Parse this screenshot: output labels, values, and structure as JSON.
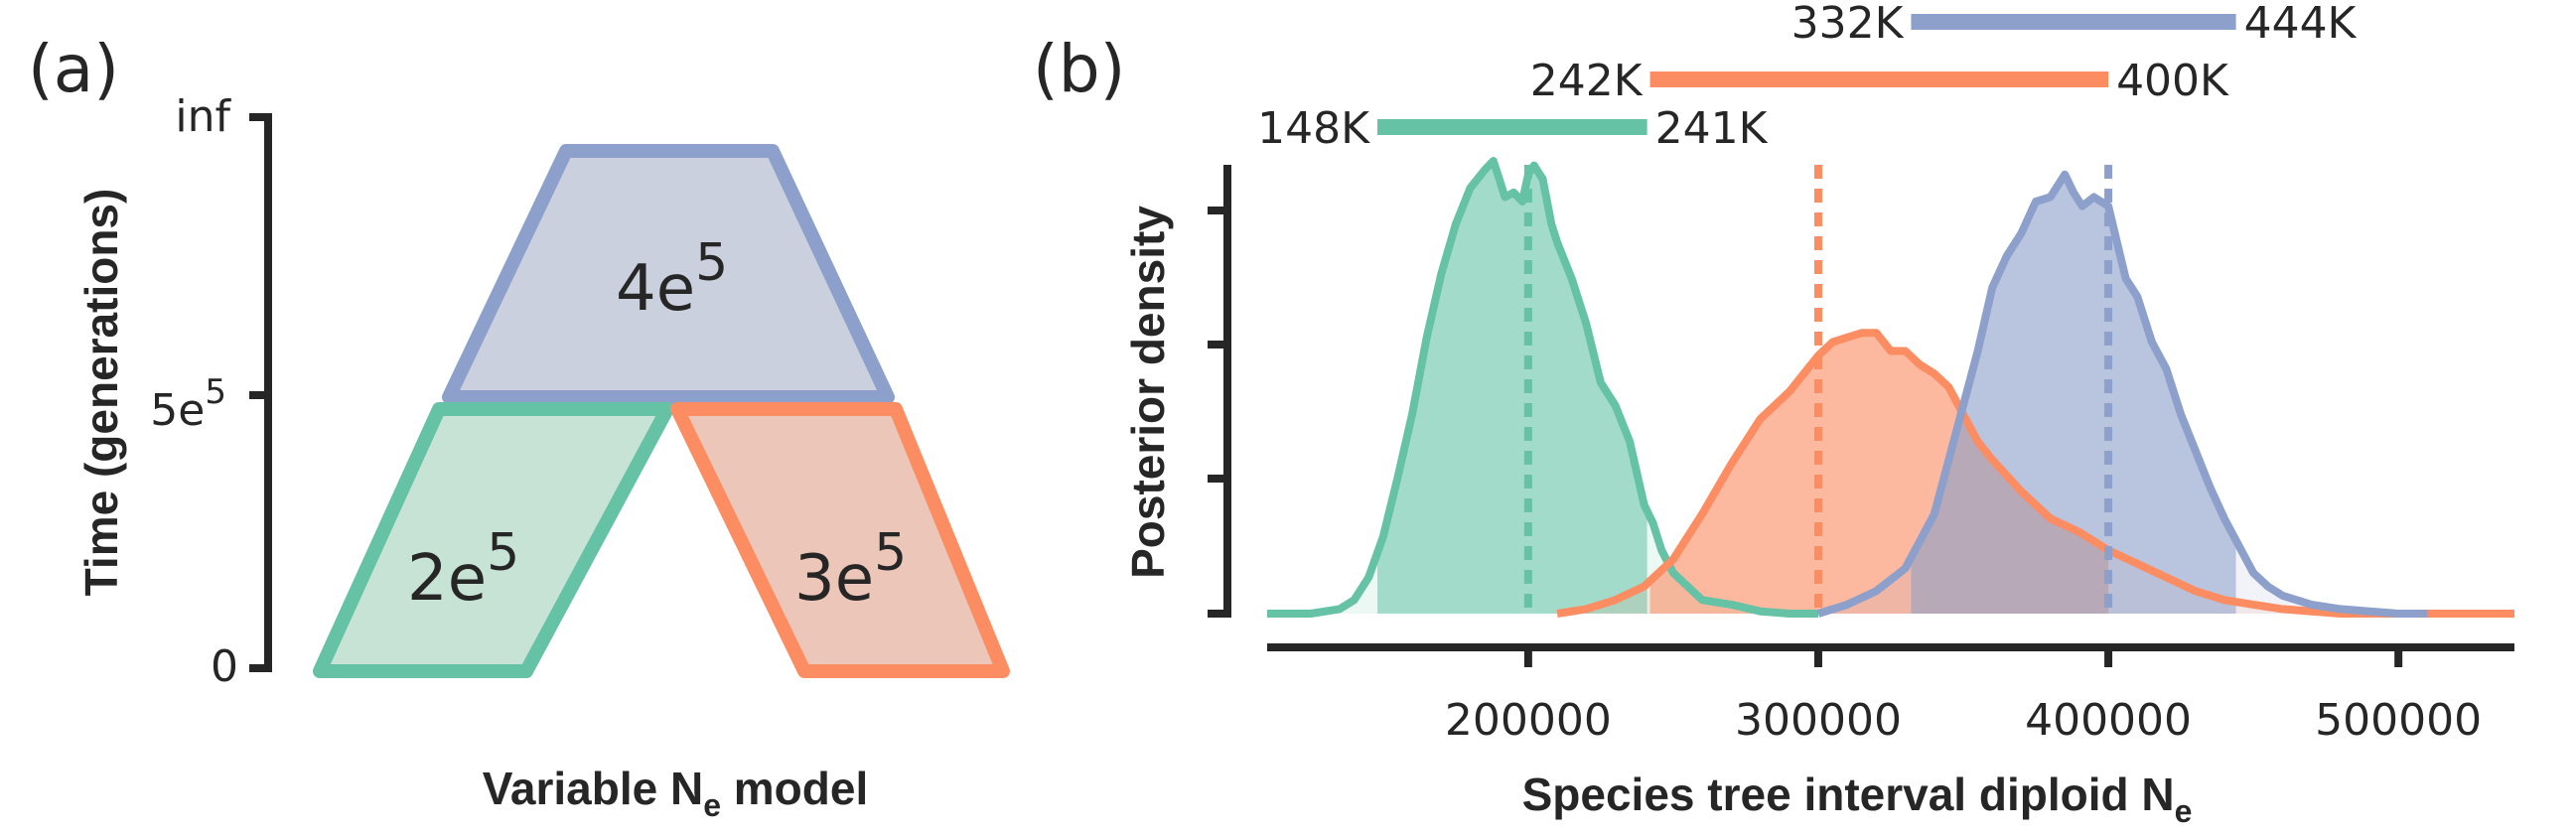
{
  "panel_a": {
    "label": "(a)",
    "ylabel": "Time (generations)",
    "xlabel_main": "Variable N",
    "xlabel_sub": "e",
    "xlabel_tail": " model",
    "yticks": [
      {
        "label": "inf"
      },
      {
        "label_base": "5e",
        "label_sup": "5"
      },
      {
        "label": "0"
      }
    ],
    "populations": [
      {
        "name_base": "4e",
        "name_sup": "5",
        "fill": "#cbd0de",
        "stroke": "#8da0cb"
      },
      {
        "name_base": "2e",
        "name_sup": "5",
        "fill": "#c6e3d6",
        "stroke": "#66c2a5"
      },
      {
        "name_base": "3e",
        "name_sup": "5",
        "fill": "#ecc6b8",
        "stroke": "#fc8d62"
      }
    ]
  },
  "panel_b": {
    "label": "(b)",
    "ylabel": "Posterior density",
    "xlabel_main": "Species tree interval diploid N",
    "xlabel_sub": "e",
    "intervals": [
      {
        "low_label": "332K",
        "high_label": "444K",
        "low": 332000,
        "high": 444000,
        "color": "#8da0cb"
      },
      {
        "low_label": "242K",
        "high_label": "400K",
        "low": 242000,
        "high": 400000,
        "color": "#fc8d62"
      },
      {
        "low_label": "148K",
        "high_label": "241K",
        "low": 148000,
        "high": 241000,
        "color": "#66c2a5"
      }
    ]
  },
  "chart_data": {
    "type": "area",
    "title": "",
    "xlabel": "Species tree interval diploid Ne",
    "ylabel": "Posterior density",
    "xlim": [
      110000,
      540000
    ],
    "ylim": [
      0,
      1.0
    ],
    "xticks": [
      200000,
      300000,
      400000,
      500000
    ],
    "xtick_labels": [
      "200000",
      "300000",
      "400000",
      "500000"
    ],
    "grid": false,
    "series": [
      {
        "color": "#66c2a5",
        "true_value": 200000,
        "ci": [
          148000,
          241000
        ],
        "x": [
          110000,
          125000,
          135000,
          140000,
          145000,
          150000,
          155000,
          160000,
          165000,
          170000,
          175000,
          180000,
          185000,
          188000,
          190000,
          192000,
          195000,
          198000,
          200000,
          202000,
          205000,
          208000,
          210000,
          215000,
          220000,
          225000,
          230000,
          235000,
          240000,
          243000,
          246000,
          250000,
          255000,
          260000,
          270000,
          280000,
          290000,
          300000
        ],
        "y": [
          0.0,
          0.0,
          0.01,
          0.03,
          0.08,
          0.17,
          0.3,
          0.44,
          0.61,
          0.75,
          0.86,
          0.94,
          0.98,
          1.0,
          0.96,
          0.92,
          0.93,
          0.91,
          0.97,
          0.99,
          0.96,
          0.86,
          0.82,
          0.74,
          0.64,
          0.51,
          0.46,
          0.38,
          0.24,
          0.2,
          0.14,
          0.09,
          0.06,
          0.03,
          0.02,
          0.005,
          0.0,
          0.0
        ]
      },
      {
        "color": "#fc8d62",
        "true_value": 300000,
        "ci": [
          242000,
          400000
        ],
        "x": [
          210000,
          220000,
          230000,
          240000,
          250000,
          260000,
          270000,
          280000,
          290000,
          300000,
          305000,
          310000,
          315000,
          320000,
          325000,
          330000,
          335000,
          340000,
          345000,
          350000,
          355000,
          360000,
          370000,
          380000,
          390000,
          400000,
          410000,
          420000,
          430000,
          440000,
          450000,
          460000,
          470000,
          480000,
          490000,
          500000,
          510000,
          520000,
          540000
        ],
        "y": [
          0.0,
          0.01,
          0.03,
          0.06,
          0.12,
          0.22,
          0.33,
          0.43,
          0.49,
          0.57,
          0.6,
          0.61,
          0.62,
          0.62,
          0.58,
          0.58,
          0.55,
          0.53,
          0.5,
          0.44,
          0.38,
          0.34,
          0.27,
          0.21,
          0.18,
          0.14,
          0.11,
          0.08,
          0.05,
          0.03,
          0.02,
          0.01,
          0.005,
          0.0,
          0.0,
          0.0,
          0.0,
          0.0,
          0.0
        ]
      },
      {
        "color": "#8da0cb",
        "true_value": 400000,
        "ci": [
          332000,
          444000
        ],
        "x": [
          300000,
          310000,
          320000,
          330000,
          340000,
          345000,
          350000,
          355000,
          360000,
          365000,
          370000,
          375000,
          380000,
          385000,
          388000,
          391000,
          395000,
          400000,
          403000,
          406000,
          410000,
          415000,
          420000,
          425000,
          430000,
          435000,
          440000,
          445000,
          450000,
          455000,
          460000,
          470000,
          480000,
          490000,
          500000,
          510000
        ],
        "y": [
          0.0,
          0.02,
          0.05,
          0.1,
          0.22,
          0.34,
          0.46,
          0.58,
          0.72,
          0.79,
          0.84,
          0.91,
          0.92,
          0.97,
          0.93,
          0.9,
          0.92,
          0.9,
          0.82,
          0.74,
          0.7,
          0.6,
          0.54,
          0.44,
          0.36,
          0.28,
          0.21,
          0.15,
          0.09,
          0.06,
          0.04,
          0.02,
          0.01,
          0.005,
          0.0,
          0.0
        ]
      }
    ]
  }
}
